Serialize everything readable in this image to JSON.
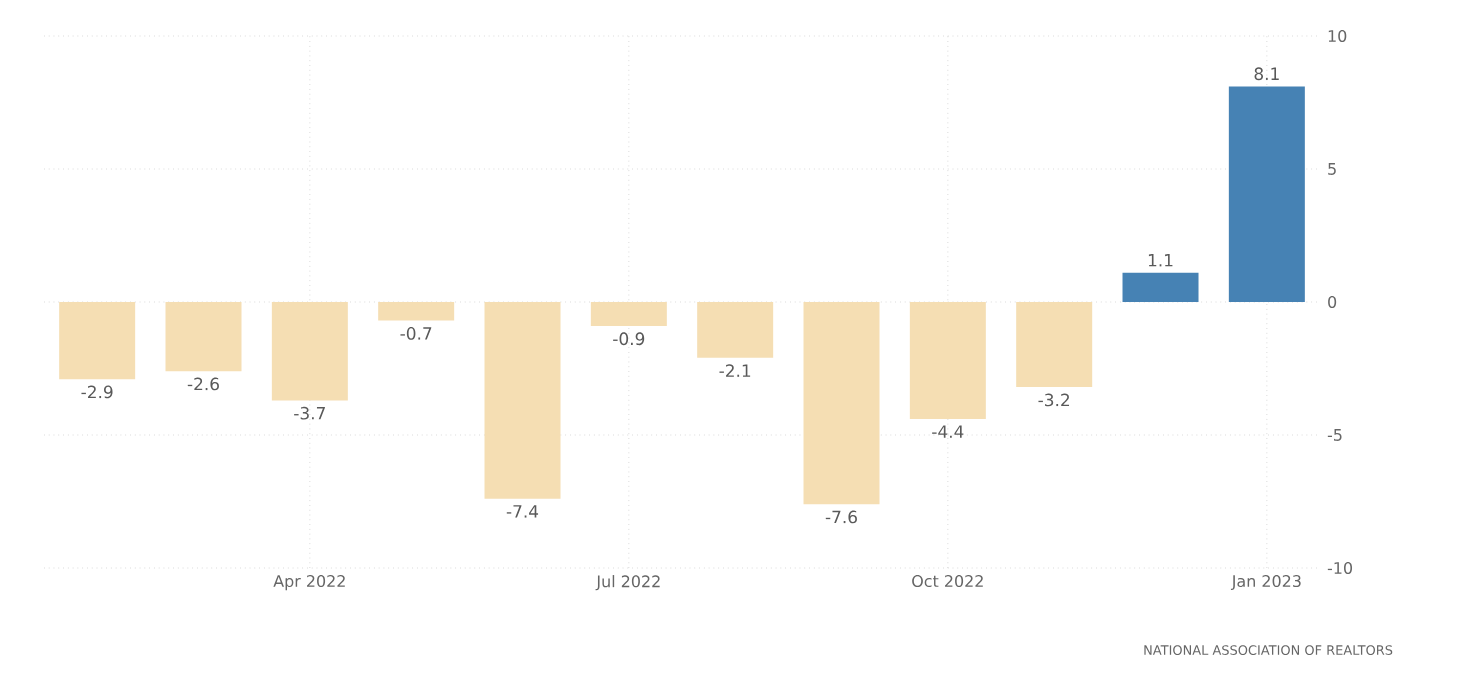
{
  "chart_data": {
    "type": "bar",
    "categories": [
      null,
      null,
      "Apr 2022",
      null,
      null,
      "Jul 2022",
      null,
      null,
      "Oct 2022",
      null,
      null,
      "Jan 2023"
    ],
    "values": [
      -2.9,
      -2.6,
      -3.7,
      -0.7,
      -7.4,
      -0.9,
      -2.1,
      -7.6,
      -4.4,
      -3.2,
      1.1,
      8.1
    ],
    "colors": [
      "#f5deb3",
      "#f5deb3",
      "#f5deb3",
      "#f5deb3",
      "#f5deb3",
      "#f5deb3",
      "#f5deb3",
      "#f5deb3",
      "#f5deb3",
      "#f5deb3",
      "#4682b4",
      "#4682b4"
    ],
    "ylim": [
      -10,
      10
    ],
    "yticks": [
      -10,
      -5,
      0,
      5,
      10
    ],
    "grid": true,
    "data_labels": true,
    "annotations": [
      "NATIONAL ASSOCIATION OF REALTORS"
    ]
  }
}
